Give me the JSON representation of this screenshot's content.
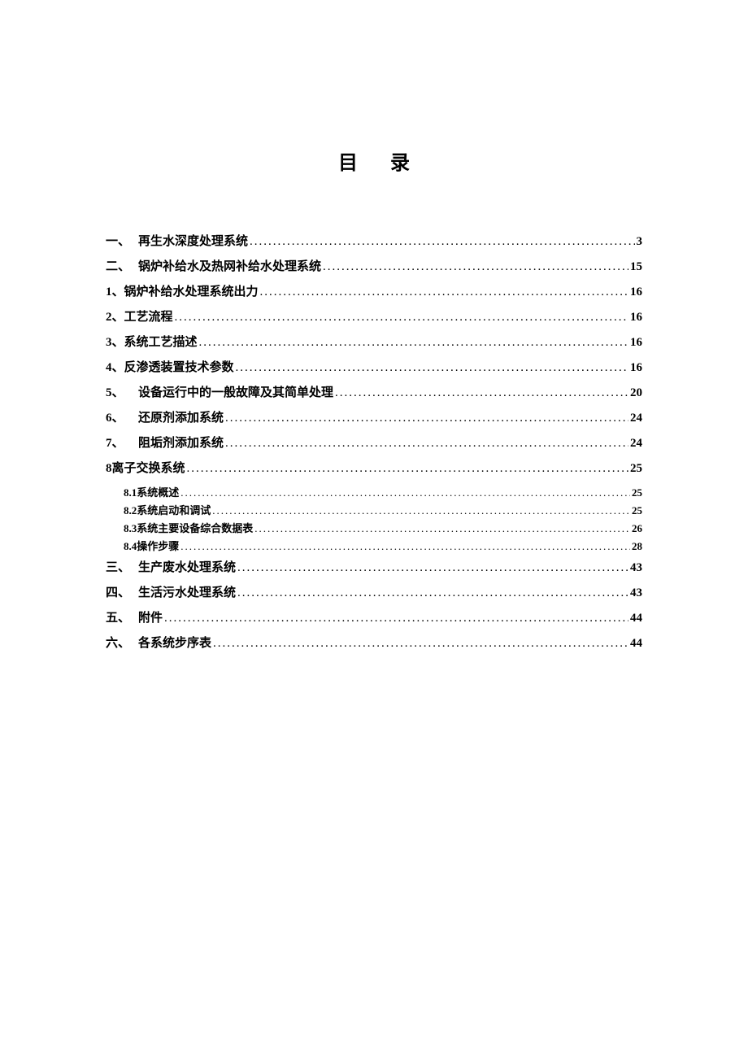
{
  "title": "目录",
  "entries": [
    {
      "number": "一、",
      "title": "再生水深度处理系统",
      "page": "3",
      "numberWide": true,
      "level": 0
    },
    {
      "number": "二、",
      "title": "锅炉补给水及热网补给水处理系统",
      "page": "15",
      "numberWide": true,
      "level": 0
    },
    {
      "number": "1、",
      "title": "锅炉补给水处理系统出力",
      "page": "16",
      "numberWide": false,
      "level": 0
    },
    {
      "number": "2、",
      "title": "工艺流程",
      "page": "16",
      "numberWide": false,
      "level": 0
    },
    {
      "number": "3、",
      "title": "系统工艺描述",
      "page": "16",
      "numberWide": false,
      "level": 0
    },
    {
      "number": "4、",
      "title": "反渗透装置技术参数",
      "page": "16",
      "numberWide": false,
      "level": 0
    },
    {
      "number": "5、",
      "title": "设备运行中的一般故障及其简单处理",
      "page": "20",
      "numberWide": true,
      "level": 0
    },
    {
      "number": "6、",
      "title": "还原剂添加系统",
      "page": "24",
      "numberWide": true,
      "level": 0
    },
    {
      "number": "7、",
      "title": "阻垢剂添加系统",
      "page": "24",
      "numberWide": true,
      "level": 0
    },
    {
      "number": "8 ",
      "title": "离子交换系统",
      "page": "25",
      "numberWide": false,
      "level": 0
    },
    {
      "number": "8.1 ",
      "title": "系统概述",
      "page": "25",
      "numberWide": false,
      "level": 1,
      "gapBefore": true
    },
    {
      "number": "8.2 ",
      "title": "系统启动和调试",
      "page": "25",
      "numberWide": false,
      "level": 1
    },
    {
      "number": "8.3 ",
      "title": "系统主要设备综合数据表",
      "page": "26",
      "numberWide": false,
      "level": 1
    },
    {
      "number": "8.4 ",
      "title": "操作步骤",
      "page": "28",
      "numberWide": false,
      "level": 1
    },
    {
      "number": "三、",
      "title": "生产废水处理系统",
      "page": "43",
      "numberWide": true,
      "level": 0,
      "gapBefore": true
    },
    {
      "number": "四、",
      "title": "生活污水处理系统",
      "page": "43",
      "numberWide": true,
      "level": 0
    },
    {
      "number": "五、",
      "title": "附件",
      "page": "44",
      "numberWide": true,
      "level": 0
    },
    {
      "number": "六、",
      "title": "各系统步序表",
      "page": "44",
      "numberWide": true,
      "level": 0
    }
  ]
}
